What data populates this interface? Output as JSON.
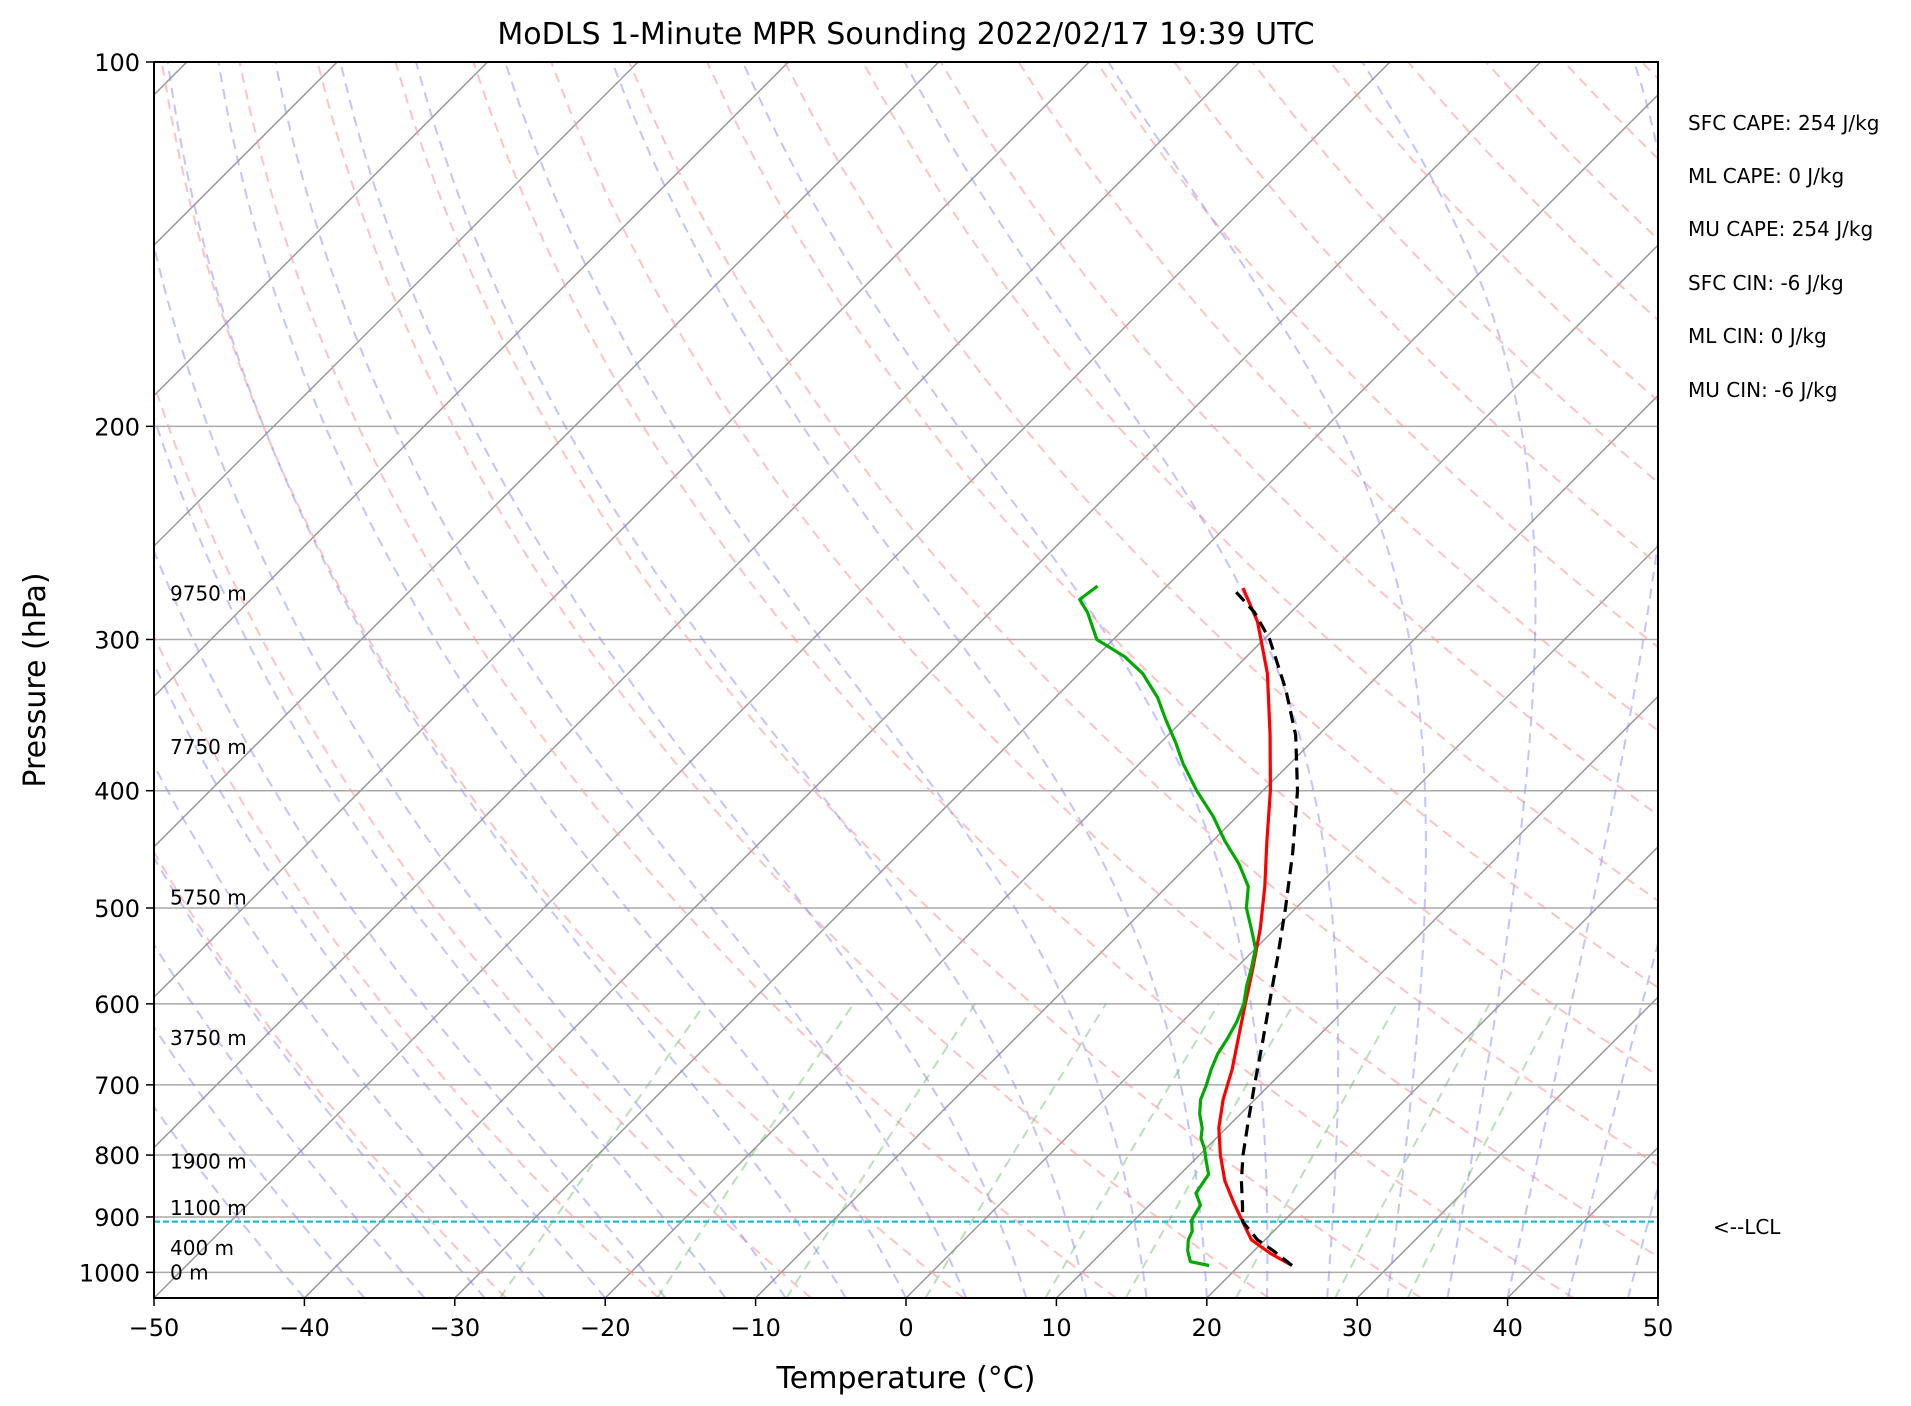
{
  "chart_data": {
    "type": "line",
    "title": "MoDLS 1-Minute MPR Sounding 2022/02/17 19:39 UTC",
    "xlabel": "Temperature (°C)",
    "ylabel": "Pressure (hPa)",
    "xlim": [
      -50,
      50
    ],
    "ylim": [
      1050,
      100
    ],
    "y_scale": "log",
    "skew_t": true,
    "x_ticks": [
      "−50",
      "−40",
      "−30",
      "−20",
      "−10",
      "0",
      "10",
      "20",
      "30",
      "40",
      "50"
    ],
    "y_ticks": [
      "100",
      "200",
      "300",
      "400",
      "500",
      "600",
      "700",
      "800",
      "900",
      "1000"
    ],
    "height_labels": [
      {
        "label": "0 m",
        "pressure": 1000
      },
      {
        "label": "400 m",
        "pressure": 955
      },
      {
        "label": "1100 m",
        "pressure": 885
      },
      {
        "label": "1900 m",
        "pressure": 810
      },
      {
        "label": "3750 m",
        "pressure": 640
      },
      {
        "label": "5750 m",
        "pressure": 490
      },
      {
        "label": "7750 m",
        "pressure": 368
      },
      {
        "label": "9750 m",
        "pressure": 275
      }
    ],
    "lcl": {
      "pressure": 908,
      "label": "<--LCL",
      "color": "#17becf"
    },
    "stats": [
      "SFC CAPE: 254 J/kg",
      "ML CAPE: 0 J/kg",
      "MU CAPE: 254 J/kg",
      "SFC CIN: -6 J/kg",
      "ML CIN: 0 J/kg",
      "MU CIN: -6 J/kg"
    ],
    "series": [
      {
        "color": "#ff0000",
        "style": "solid",
        "points": [
          [
            987,
            23.5
          ],
          [
            965,
            21.3
          ],
          [
            940,
            19.1
          ],
          [
            908,
            17.3
          ],
          [
            875,
            15.4
          ],
          [
            840,
            13.4
          ],
          [
            800,
            11.4
          ],
          [
            760,
            9.5
          ],
          [
            720,
            7.9
          ],
          [
            680,
            6.5
          ],
          [
            640,
            4.8
          ],
          [
            600,
            3.0
          ],
          [
            560,
            1.1
          ],
          [
            520,
            -1.0
          ],
          [
            480,
            -3.5
          ],
          [
            440,
            -6.4
          ],
          [
            400,
            -9.5
          ],
          [
            360,
            -13.2
          ],
          [
            320,
            -17.5
          ],
          [
            290,
            -21.6
          ],
          [
            272,
            -24.8
          ]
        ]
      },
      {
        "color": "#00aa00",
        "style": "solid",
        "points": [
          [
            987,
            18.0
          ],
          [
            980,
            16.5
          ],
          [
            960,
            15.6
          ],
          [
            940,
            14.9
          ],
          [
            925,
            14.6
          ],
          [
            905,
            13.8
          ],
          [
            880,
            13.4
          ],
          [
            860,
            12.3
          ],
          [
            845,
            12.1
          ],
          [
            830,
            11.9
          ],
          [
            810,
            10.9
          ],
          [
            790,
            9.9
          ],
          [
            775,
            9.0
          ],
          [
            760,
            8.4
          ],
          [
            740,
            7.3
          ],
          [
            720,
            6.4
          ],
          [
            700,
            5.8
          ],
          [
            680,
            5.1
          ],
          [
            660,
            4.5
          ],
          [
            640,
            4.1
          ],
          [
            620,
            3.6
          ],
          [
            600,
            2.9
          ],
          [
            580,
            1.9
          ],
          [
            560,
            1.0
          ],
          [
            540,
            0.0
          ],
          [
            520,
            -1.6
          ],
          [
            500,
            -3.3
          ],
          [
            480,
            -4.6
          ],
          [
            460,
            -6.7
          ],
          [
            440,
            -9.2
          ],
          [
            420,
            -11.6
          ],
          [
            400,
            -14.4
          ],
          [
            380,
            -17.1
          ],
          [
            365,
            -19.0
          ],
          [
            350,
            -21.1
          ],
          [
            335,
            -23.2
          ],
          [
            320,
            -25.8
          ],
          [
            310,
            -28.1
          ],
          [
            300,
            -31.1
          ],
          [
            285,
            -33.5
          ],
          [
            278,
            -34.9
          ],
          [
            271,
            -34.6
          ]
        ]
      },
      {
        "color": "#000000",
        "style": "dashed",
        "points": [
          [
            987,
            23.5
          ],
          [
            960,
            21.3
          ],
          [
            940,
            19.5
          ],
          [
            908,
            17.3
          ],
          [
            880,
            16.2
          ],
          [
            840,
            14.5
          ],
          [
            800,
            12.9
          ],
          [
            750,
            11.0
          ],
          [
            700,
            9.0
          ],
          [
            650,
            6.9
          ],
          [
            600,
            4.6
          ],
          [
            550,
            2.1
          ],
          [
            500,
            -0.7
          ],
          [
            450,
            -3.9
          ],
          [
            400,
            -7.7
          ],
          [
            360,
            -11.5
          ],
          [
            330,
            -15.2
          ],
          [
            300,
            -19.6
          ],
          [
            285,
            -22.4
          ],
          [
            272,
            -25.5
          ]
        ]
      }
    ],
    "background_lines": {
      "isotherms": "gray solid",
      "dry_adiabats": "red dashed",
      "moist_adiabats": "blue dashed",
      "mixing_ratio": "green dashed"
    }
  }
}
